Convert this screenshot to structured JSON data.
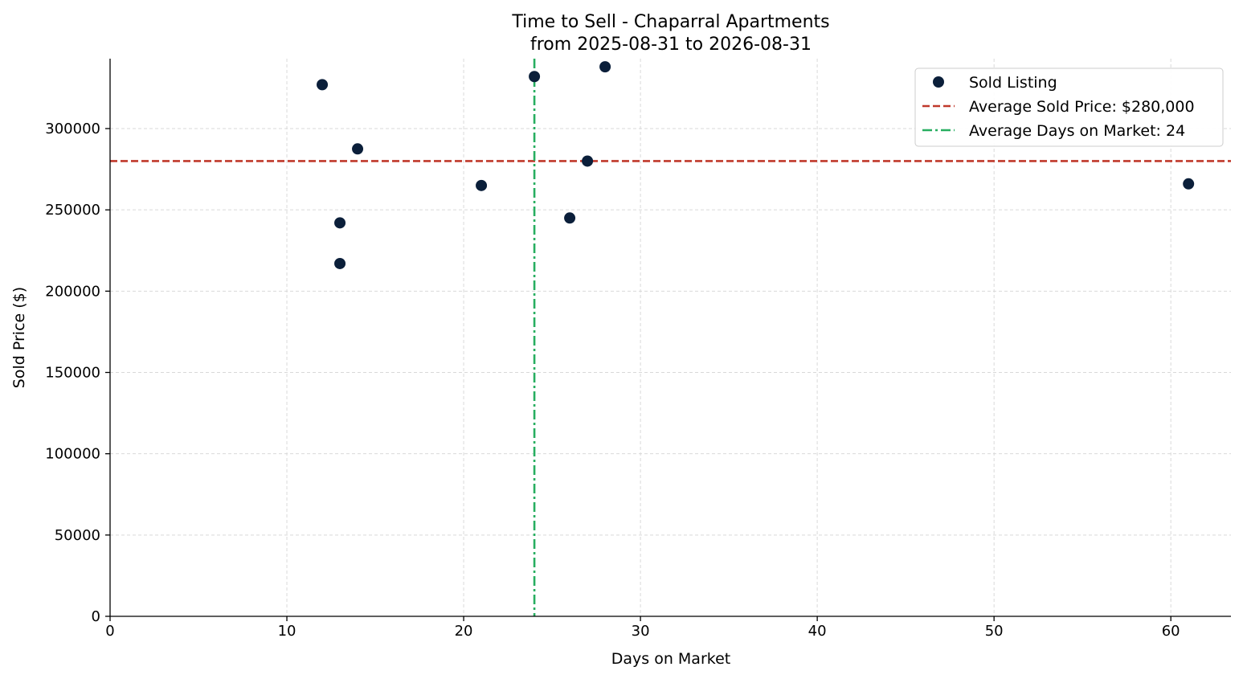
{
  "chart_data": {
    "type": "scatter",
    "title": "Time to Sell - Chaparral Apartments",
    "subtitle": "from 2025-08-31 to 2026-08-31",
    "xlabel": "Days on Market",
    "ylabel": "Sold Price ($)",
    "xlim": [
      0,
      63.4
    ],
    "ylim": [
      0,
      343000
    ],
    "xticks": [
      0,
      10,
      20,
      30,
      40,
      50,
      60
    ],
    "yticks": [
      0,
      50000,
      100000,
      150000,
      200000,
      250000,
      300000
    ],
    "grid": true,
    "legend_position": "top-right",
    "series": [
      {
        "name": "Sold Listing",
        "color": "#0b1f3a",
        "points": [
          {
            "x": 12,
            "y": 327000
          },
          {
            "x": 13,
            "y": 242000
          },
          {
            "x": 13,
            "y": 217000
          },
          {
            "x": 14,
            "y": 287500
          },
          {
            "x": 21,
            "y": 265000
          },
          {
            "x": 24,
            "y": 332000
          },
          {
            "x": 26,
            "y": 245000
          },
          {
            "x": 27,
            "y": 280000
          },
          {
            "x": 28,
            "y": 338000
          },
          {
            "x": 61,
            "y": 266000
          }
        ]
      }
    ],
    "reference_lines": [
      {
        "name": "Average Sold Price: $280,000",
        "orientation": "horizontal",
        "value": 280000,
        "color": "#c0392b",
        "style": "dashed"
      },
      {
        "name": "Average Days on Market: 24",
        "orientation": "vertical",
        "value": 24,
        "color": "#27ae60",
        "style": "dashdot"
      }
    ]
  }
}
